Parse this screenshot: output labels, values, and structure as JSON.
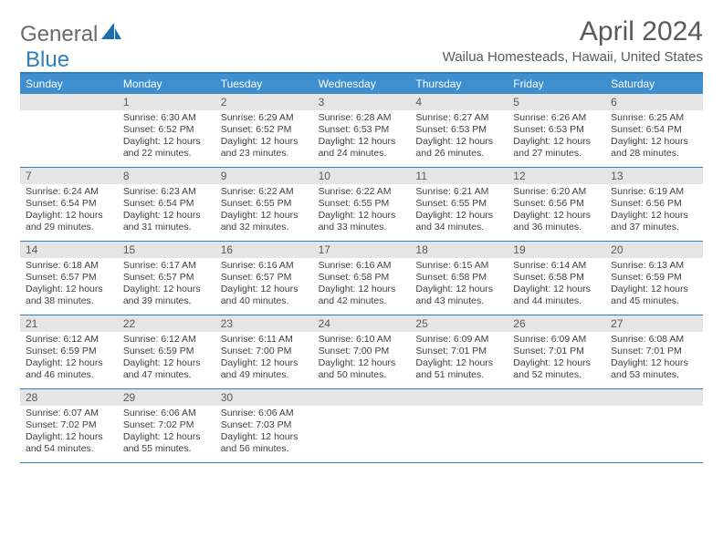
{
  "brand": {
    "part1": "General",
    "part2": "Blue",
    "color1": "#6a6a6a",
    "color2": "#2f7fbf"
  },
  "title": "April 2024",
  "location": "Wailua Homesteads, Hawaii, United States",
  "accent_color": "#3d8fcf",
  "border_color": "#2f7fbf",
  "daynum_bg": "#e5e5e5",
  "text_color": "#414141",
  "day_labels": [
    "Sunday",
    "Monday",
    "Tuesday",
    "Wednesday",
    "Thursday",
    "Friday",
    "Saturday"
  ],
  "weeks": [
    [
      {
        "n": "",
        "sr": "",
        "ss": "",
        "dl": ""
      },
      {
        "n": "1",
        "sr": "Sunrise: 6:30 AM",
        "ss": "Sunset: 6:52 PM",
        "dl": "Daylight: 12 hours and 22 minutes."
      },
      {
        "n": "2",
        "sr": "Sunrise: 6:29 AM",
        "ss": "Sunset: 6:52 PM",
        "dl": "Daylight: 12 hours and 23 minutes."
      },
      {
        "n": "3",
        "sr": "Sunrise: 6:28 AM",
        "ss": "Sunset: 6:53 PM",
        "dl": "Daylight: 12 hours and 24 minutes."
      },
      {
        "n": "4",
        "sr": "Sunrise: 6:27 AM",
        "ss": "Sunset: 6:53 PM",
        "dl": "Daylight: 12 hours and 26 minutes."
      },
      {
        "n": "5",
        "sr": "Sunrise: 6:26 AM",
        "ss": "Sunset: 6:53 PM",
        "dl": "Daylight: 12 hours and 27 minutes."
      },
      {
        "n": "6",
        "sr": "Sunrise: 6:25 AM",
        "ss": "Sunset: 6:54 PM",
        "dl": "Daylight: 12 hours and 28 minutes."
      }
    ],
    [
      {
        "n": "7",
        "sr": "Sunrise: 6:24 AM",
        "ss": "Sunset: 6:54 PM",
        "dl": "Daylight: 12 hours and 29 minutes."
      },
      {
        "n": "8",
        "sr": "Sunrise: 6:23 AM",
        "ss": "Sunset: 6:54 PM",
        "dl": "Daylight: 12 hours and 31 minutes."
      },
      {
        "n": "9",
        "sr": "Sunrise: 6:22 AM",
        "ss": "Sunset: 6:55 PM",
        "dl": "Daylight: 12 hours and 32 minutes."
      },
      {
        "n": "10",
        "sr": "Sunrise: 6:22 AM",
        "ss": "Sunset: 6:55 PM",
        "dl": "Daylight: 12 hours and 33 minutes."
      },
      {
        "n": "11",
        "sr": "Sunrise: 6:21 AM",
        "ss": "Sunset: 6:55 PM",
        "dl": "Daylight: 12 hours and 34 minutes."
      },
      {
        "n": "12",
        "sr": "Sunrise: 6:20 AM",
        "ss": "Sunset: 6:56 PM",
        "dl": "Daylight: 12 hours and 36 minutes."
      },
      {
        "n": "13",
        "sr": "Sunrise: 6:19 AM",
        "ss": "Sunset: 6:56 PM",
        "dl": "Daylight: 12 hours and 37 minutes."
      }
    ],
    [
      {
        "n": "14",
        "sr": "Sunrise: 6:18 AM",
        "ss": "Sunset: 6:57 PM",
        "dl": "Daylight: 12 hours and 38 minutes."
      },
      {
        "n": "15",
        "sr": "Sunrise: 6:17 AM",
        "ss": "Sunset: 6:57 PM",
        "dl": "Daylight: 12 hours and 39 minutes."
      },
      {
        "n": "16",
        "sr": "Sunrise: 6:16 AM",
        "ss": "Sunset: 6:57 PM",
        "dl": "Daylight: 12 hours and 40 minutes."
      },
      {
        "n": "17",
        "sr": "Sunrise: 6:16 AM",
        "ss": "Sunset: 6:58 PM",
        "dl": "Daylight: 12 hours and 42 minutes."
      },
      {
        "n": "18",
        "sr": "Sunrise: 6:15 AM",
        "ss": "Sunset: 6:58 PM",
        "dl": "Daylight: 12 hours and 43 minutes."
      },
      {
        "n": "19",
        "sr": "Sunrise: 6:14 AM",
        "ss": "Sunset: 6:58 PM",
        "dl": "Daylight: 12 hours and 44 minutes."
      },
      {
        "n": "20",
        "sr": "Sunrise: 6:13 AM",
        "ss": "Sunset: 6:59 PM",
        "dl": "Daylight: 12 hours and 45 minutes."
      }
    ],
    [
      {
        "n": "21",
        "sr": "Sunrise: 6:12 AM",
        "ss": "Sunset: 6:59 PM",
        "dl": "Daylight: 12 hours and 46 minutes."
      },
      {
        "n": "22",
        "sr": "Sunrise: 6:12 AM",
        "ss": "Sunset: 6:59 PM",
        "dl": "Daylight: 12 hours and 47 minutes."
      },
      {
        "n": "23",
        "sr": "Sunrise: 6:11 AM",
        "ss": "Sunset: 7:00 PM",
        "dl": "Daylight: 12 hours and 49 minutes."
      },
      {
        "n": "24",
        "sr": "Sunrise: 6:10 AM",
        "ss": "Sunset: 7:00 PM",
        "dl": "Daylight: 12 hours and 50 minutes."
      },
      {
        "n": "25",
        "sr": "Sunrise: 6:09 AM",
        "ss": "Sunset: 7:01 PM",
        "dl": "Daylight: 12 hours and 51 minutes."
      },
      {
        "n": "26",
        "sr": "Sunrise: 6:09 AM",
        "ss": "Sunset: 7:01 PM",
        "dl": "Daylight: 12 hours and 52 minutes."
      },
      {
        "n": "27",
        "sr": "Sunrise: 6:08 AM",
        "ss": "Sunset: 7:01 PM",
        "dl": "Daylight: 12 hours and 53 minutes."
      }
    ],
    [
      {
        "n": "28",
        "sr": "Sunrise: 6:07 AM",
        "ss": "Sunset: 7:02 PM",
        "dl": "Daylight: 12 hours and 54 minutes."
      },
      {
        "n": "29",
        "sr": "Sunrise: 6:06 AM",
        "ss": "Sunset: 7:02 PM",
        "dl": "Daylight: 12 hours and 55 minutes."
      },
      {
        "n": "30",
        "sr": "Sunrise: 6:06 AM",
        "ss": "Sunset: 7:03 PM",
        "dl": "Daylight: 12 hours and 56 minutes."
      },
      {
        "n": "",
        "sr": "",
        "ss": "",
        "dl": ""
      },
      {
        "n": "",
        "sr": "",
        "ss": "",
        "dl": ""
      },
      {
        "n": "",
        "sr": "",
        "ss": "",
        "dl": ""
      },
      {
        "n": "",
        "sr": "",
        "ss": "",
        "dl": ""
      }
    ]
  ]
}
